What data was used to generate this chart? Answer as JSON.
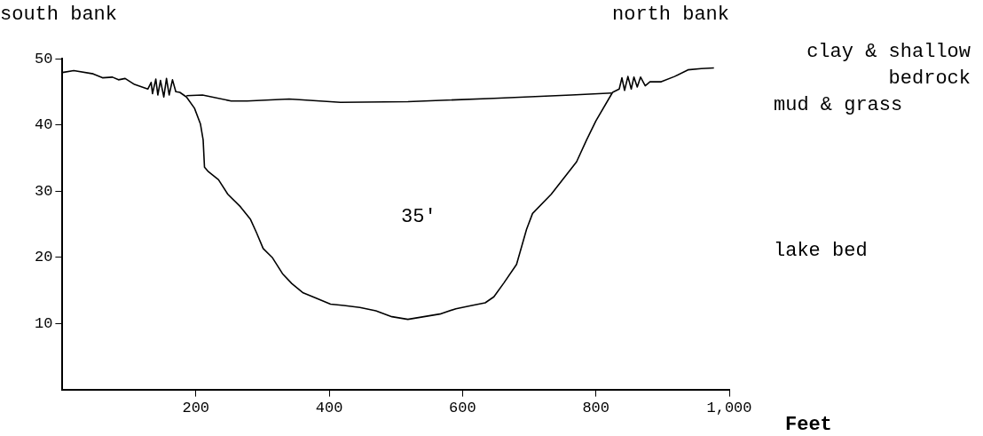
{
  "chart_data": {
    "type": "line",
    "xlabel": "Feet",
    "xlim": [
      0,
      1000
    ],
    "ylim": [
      0,
      50
    ],
    "xticks": [
      200,
      400,
      600,
      800,
      {
        "value": 1000,
        "label": "1,000"
      }
    ],
    "yticks": [
      10,
      20,
      30,
      40,
      50
    ],
    "grid": false,
    "legend": false,
    "marker": "none",
    "line_style": "solid",
    "series": [
      {
        "color": "#000000",
        "x": [
          0,
          17,
          46,
          60,
          75,
          84,
          94,
          108,
          128,
          133,
          135,
          140,
          143,
          147,
          152,
          156,
          160,
          165,
          170,
          176,
          186,
          198,
          207,
          211,
          213,
          219,
          234,
          248,
          267,
          282,
          291,
          301,
          315,
          330,
          344,
          361,
          378,
          402,
          422,
          446,
          470,
          494,
          518,
          542,
          566,
          590,
          614,
          634,
          647,
          662,
          681,
          696,
          705,
          733,
          771,
          786,
          800,
          825,
          835,
          839,
          843,
          848,
          853,
          857,
          862,
          867,
          874,
          881,
          898,
          918,
          938,
          958,
          977
        ],
        "values": [
          47.9,
          48.2,
          47.7,
          47.1,
          47.2,
          46.8,
          47.0,
          46.1,
          45.4,
          46.4,
          44.7,
          46.9,
          44.5,
          46.7,
          44.2,
          47.0,
          44.5,
          46.8,
          45.0,
          44.9,
          44.2,
          42.5,
          40.1,
          37.7,
          33.6,
          32.9,
          31.7,
          29.5,
          27.6,
          25.7,
          23.7,
          21.3,
          19.9,
          17.5,
          16.0,
          14.6,
          13.9,
          12.9,
          12.7,
          12.4,
          11.9,
          11.0,
          10.6,
          11.0,
          11.4,
          12.2,
          12.7,
          13.1,
          14.0,
          16.1,
          18.9,
          24.2,
          26.6,
          29.5,
          34.4,
          37.7,
          40.6,
          44.9,
          45.4,
          47.1,
          45.2,
          47.3,
          45.4,
          47.2,
          45.7,
          47.2,
          45.9,
          46.5,
          46.5,
          47.3,
          48.3,
          48.5,
          48.6
        ]
      },
      {
        "color": "#000000",
        "x": [
          186,
          210,
          253,
          277,
          340,
          417,
          518,
          647,
          763,
          824
        ],
        "values": [
          44.4,
          44.5,
          43.6,
          43.6,
          43.9,
          43.4,
          43.5,
          44.0,
          44.5,
          44.8
        ]
      }
    ],
    "annotations": [
      "south bank",
      "north bank",
      "clay & shallow bedrock",
      "mud & grass",
      "lake bed",
      "35'"
    ]
  }
}
